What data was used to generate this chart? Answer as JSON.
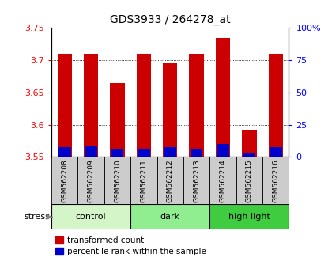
{
  "title": "GDS3933 / 264278_at",
  "samples": [
    "GSM562208",
    "GSM562209",
    "GSM562210",
    "GSM562211",
    "GSM562212",
    "GSM562213",
    "GSM562214",
    "GSM562215",
    "GSM562216"
  ],
  "red_values": [
    3.71,
    3.71,
    3.665,
    3.71,
    3.695,
    3.71,
    3.735,
    3.592,
    3.71
  ],
  "blue_values": [
    3.565,
    3.567,
    3.562,
    3.562,
    3.565,
    3.562,
    3.57,
    3.555,
    3.565
  ],
  "y_min": 3.55,
  "y_max": 3.75,
  "y_ticks": [
    3.55,
    3.6,
    3.65,
    3.7,
    3.75
  ],
  "right_y_ticks": [
    0,
    25,
    50,
    75,
    100
  ],
  "right_y_tick_labels": [
    "0",
    "25",
    "50",
    "75",
    "100%"
  ],
  "groups": [
    {
      "label": "control",
      "start": 0,
      "end": 3,
      "color": "#d4f5c8"
    },
    {
      "label": "dark",
      "start": 3,
      "end": 6,
      "color": "#90ee90"
    },
    {
      "label": "high light",
      "start": 6,
      "end": 9,
      "color": "#40cc40"
    }
  ],
  "bar_width": 0.55,
  "red_color": "#cc0000",
  "blue_color": "#0000cc",
  "label_red": "transformed count",
  "label_blue": "percentile rank within the sample",
  "stress_label": "stress"
}
